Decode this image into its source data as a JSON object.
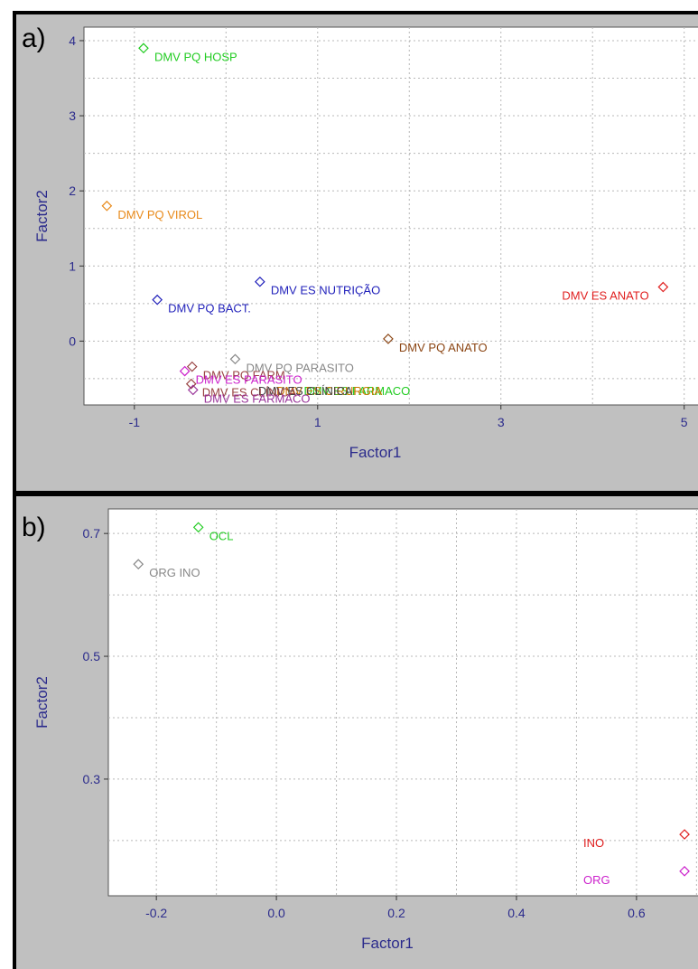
{
  "chart_data": [
    {
      "panel_label": "a)",
      "type": "scatter",
      "xlabel": "Factor1",
      "ylabel": "Factor2",
      "xlim": [
        -1.55,
        5.2
      ],
      "ylim": [
        -0.85,
        4.18
      ],
      "xticks": [
        -1,
        1,
        3,
        5
      ],
      "yticks": [
        0,
        1,
        2,
        3,
        4
      ],
      "grid": true,
      "points": [
        {
          "label": "DMV PQ HOSP",
          "x": -0.9,
          "y": 3.9,
          "color": "#22cc22"
        },
        {
          "label": "DMV PQ VIROL",
          "x": -1.3,
          "y": 1.8,
          "color": "#e88a1a"
        },
        {
          "label": "DMV ES NUTRIÇÃO",
          "x": 0.37,
          "y": 0.79,
          "color": "#2222bb"
        },
        {
          "label": "DMV PQ BACT.",
          "x": -0.75,
          "y": 0.55,
          "color": "#2222bb"
        },
        {
          "label": "DMV ES ANATO",
          "x": 4.77,
          "y": 0.72,
          "color": "#e02020"
        },
        {
          "label": "DMV PQ ANATO",
          "x": 1.77,
          "y": 0.03,
          "color": "#8b4513"
        },
        {
          "label": "DMV PQ PARASITO",
          "x": 0.1,
          "y": -0.24,
          "color": "#888888"
        },
        {
          "label": "DMV PQ FARM",
          "x": -0.37,
          "y": -0.34,
          "color": "#994444"
        },
        {
          "label": "DMV ES PARASITO",
          "x": -0.45,
          "y": -0.4,
          "color": "#cc22cc"
        },
        {
          "label": "DMV ES CLÍNICA",
          "x": -0.38,
          "y": -0.57,
          "color": "#994444"
        },
        {
          "label": "DMV ES FARMACO",
          "x": -0.36,
          "y": -0.65,
          "color": "#993399"
        }
      ],
      "overlap_labels": [
        {
          "text": "DMV ES FARMACO",
          "x": 0.85,
          "y": -0.66,
          "color": "#22cc22"
        },
        {
          "text": "DMV ES CIRURGIA",
          "x": 0.55,
          "y": -0.66,
          "color": "#cc7700"
        },
        {
          "text": "DMV ES CLÍNICA",
          "x": 0.35,
          "y": -0.66,
          "color": "#444444"
        }
      ]
    },
    {
      "panel_label": "b)",
      "type": "scatter",
      "xlabel": "Factor1",
      "ylabel": "Factor2",
      "xlim": [
        -0.28,
        0.71
      ],
      "ylim": [
        0.11,
        0.74
      ],
      "xticks": [
        -0.2,
        0.0,
        0.2,
        0.4,
        0.6
      ],
      "xtick_labels": [
        "-0.2",
        "0.0",
        "0.2",
        "0.4",
        "0.6"
      ],
      "yticks": [
        0.3,
        0.5,
        0.7
      ],
      "ytick_labels": [
        "0.3",
        "0.5",
        "0.7"
      ],
      "grid": true,
      "points": [
        {
          "label": "OCL",
          "x": -0.13,
          "y": 0.71,
          "color": "#22cc22"
        },
        {
          "label": "ORG INO",
          "x": -0.23,
          "y": 0.65,
          "color": "#888888"
        },
        {
          "label": "INO",
          "x": 0.68,
          "y": 0.21,
          "color": "#e02020"
        },
        {
          "label": "ORG",
          "x": 0.68,
          "y": 0.15,
          "color": "#cc22cc"
        }
      ]
    }
  ]
}
